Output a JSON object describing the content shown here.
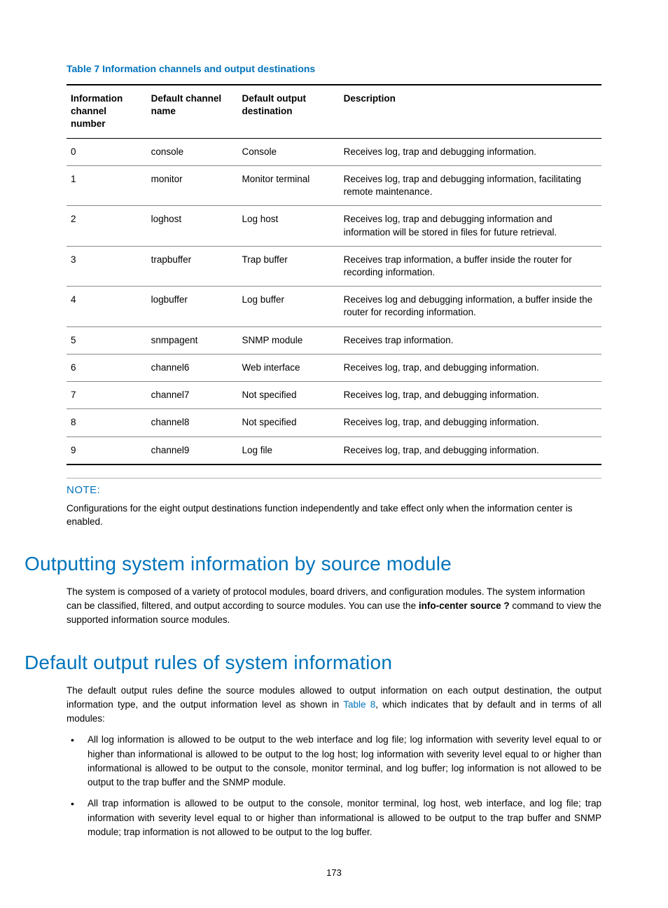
{
  "colors": {
    "link": "#0073ba",
    "text": "#000000",
    "rule_light": "#888888",
    "rule_heavy": "#000000",
    "hr": "#b0b0b0"
  },
  "fonts": {
    "body_size_pt": 10,
    "heading_size_pt": 21,
    "caption_size_pt": 10.5
  },
  "table": {
    "caption": "Table 7 Information channels and output destinations",
    "columns": [
      "Information channel number",
      "Default channel name",
      "Default output destination",
      "Description"
    ],
    "col_widths_pct": [
      15,
      17,
      19,
      49
    ],
    "rows": [
      [
        "0",
        "console",
        "Console",
        "Receives log, trap and debugging information."
      ],
      [
        "1",
        "monitor",
        "Monitor terminal",
        "Receives log, trap and debugging information, facilitating remote maintenance."
      ],
      [
        "2",
        "loghost",
        "Log host",
        "Receives log, trap and debugging information and information will be stored in files for future retrieval."
      ],
      [
        "3",
        "trapbuffer",
        "Trap buffer",
        "Receives trap information, a buffer inside the router for recording information."
      ],
      [
        "4",
        "logbuffer",
        "Log buffer",
        "Receives log and debugging information, a buffer inside the router for recording information."
      ],
      [
        "5",
        "snmpagent",
        "SNMP module",
        "Receives trap information."
      ],
      [
        "6",
        "channel6",
        "Web interface",
        "Receives log, trap, and debugging information."
      ],
      [
        "7",
        "channel7",
        "Not specified",
        "Receives log, trap, and debugging information."
      ],
      [
        "8",
        "channel8",
        "Not specified",
        "Receives log, trap, and debugging information."
      ],
      [
        "9",
        "channel9",
        "Log file",
        "Receives log, trap, and debugging information."
      ]
    ]
  },
  "note": {
    "label": "NOTE:",
    "text": "Configurations for the eight output destinations function independently and take effect only when the information center is enabled."
  },
  "section1": {
    "heading": "Outputting system information by source module",
    "para_before_bold": "The system is composed of a variety of protocol modules, board drivers, and configuration modules. The system information can be classified, filtered, and output according to source modules. You can use the ",
    "bold": "info-center source ?",
    "para_after_bold": " command to view the supported information source modules."
  },
  "section2": {
    "heading": "Default output rules of system information",
    "para_before_link": "The default output rules define the source modules allowed to output information on each output destination, the output information type, and the output information level as shown in ",
    "link_text": "Table 8",
    "para_after_link": ", which indicates that by default and in terms of all modules:",
    "bullets": [
      "All log information is allowed to be output to the web interface and log file; log information with severity level equal to or higher than informational is allowed to be output to the log host; log information with severity level equal to or higher than informational is allowed to be output to the console, monitor terminal, and log buffer; log information is not allowed to be output to the trap buffer and the SNMP module.",
      "All trap information is allowed to be output to the console, monitor terminal, log host, web interface, and log file; trap information with severity level equal to or higher than informational is allowed to be output to the trap buffer and SNMP module; trap information is not allowed to be output to the log buffer."
    ]
  },
  "page_number": "173"
}
